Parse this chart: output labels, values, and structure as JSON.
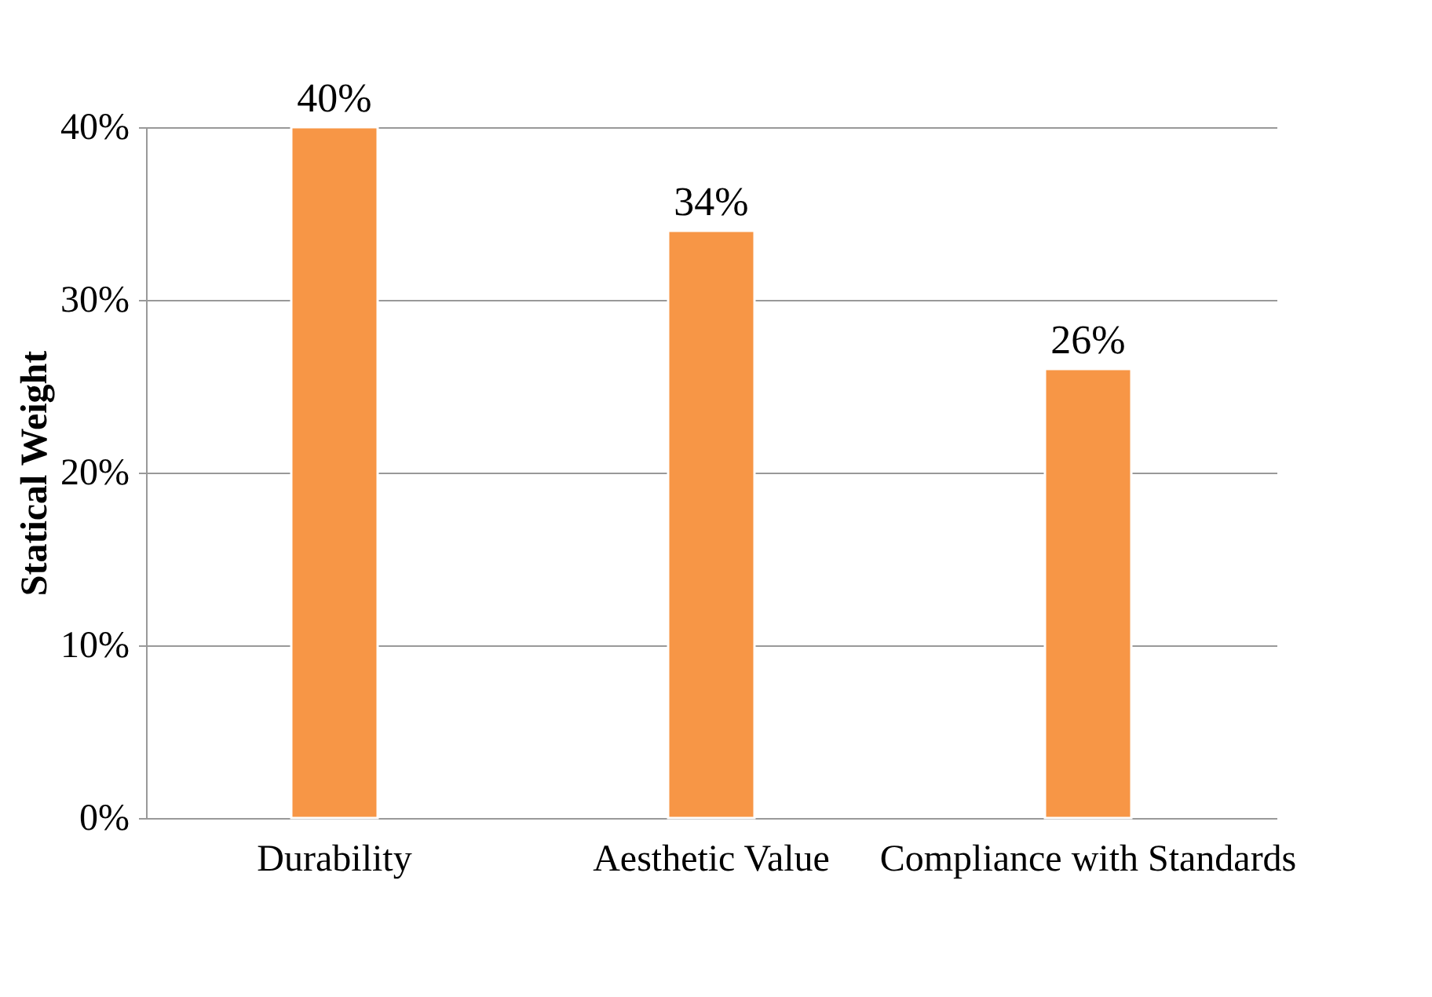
{
  "chart_data": {
    "type": "bar",
    "ylabel": "Statical Weight",
    "categories": [
      "Durability",
      "Aesthetic Value",
      "Compliance with Standards"
    ],
    "values": [
      40,
      34,
      26
    ],
    "color": "#f79646",
    "value_labels": [
      "40%",
      "34%",
      "26%"
    ],
    "ylim": [
      0,
      40
    ],
    "yticks": [
      {
        "value": 0,
        "label": "0%"
      },
      {
        "value": 10,
        "label": "10%"
      },
      {
        "value": 20,
        "label": "20%"
      },
      {
        "value": 30,
        "label": "30%"
      },
      {
        "value": 40,
        "label": "40%"
      }
    ],
    "grid": "y"
  }
}
